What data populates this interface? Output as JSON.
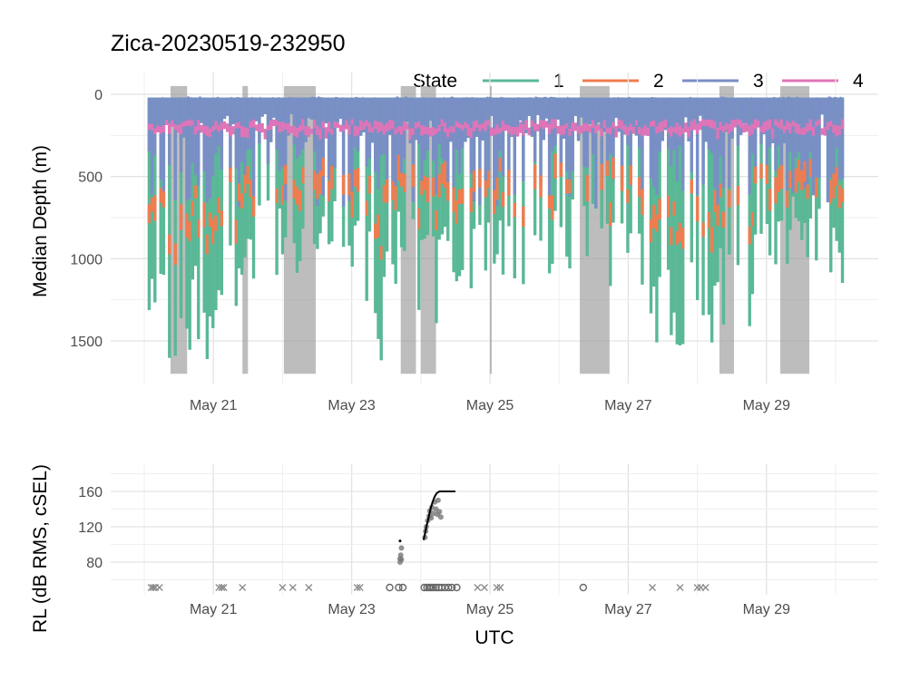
{
  "chart_data": [
    {
      "type": "line",
      "title": "Zica-20230519-232950",
      "xlabel": "",
      "ylabel": "Median Depth (m)",
      "x_tick_labels": [
        "May 21",
        "May 23",
        "May 25",
        "May 27",
        "May 29"
      ],
      "y_tick_labels": [
        "0",
        "500",
        "1000",
        "1500"
      ],
      "y_ticks": [
        0,
        500,
        1000,
        1500
      ],
      "y_reversed": true,
      "ylim": [
        1700,
        -60
      ],
      "xlim_days": [
        19.7,
        30.3
      ],
      "grid": true,
      "legend": {
        "title": "State",
        "position": "top",
        "entries": [
          {
            "label": "1",
            "color": "#5ab896"
          },
          {
            "label": "2",
            "color": "#f07c4f"
          },
          {
            "label": "3",
            "color": "#7a8ec6"
          },
          {
            "label": "4",
            "color": "#e074b8"
          }
        ]
      },
      "shaded_periods_days": [
        [
          20.38,
          20.62
        ],
        [
          21.42,
          21.5
        ],
        [
          22.02,
          22.48
        ],
        [
          23.71,
          23.93
        ],
        [
          24.0,
          24.22
        ],
        [
          25.0,
          25.02
        ],
        [
          26.3,
          26.73
        ],
        [
          28.32,
          28.53
        ],
        [
          29.2,
          29.62
        ]
      ],
      "dives": {
        "start_day": 20.05,
        "end_day": 30.12,
        "count": 240,
        "max_depth_profile_days": [
          20.05,
          20.4,
          20.8,
          21.2,
          21.6,
          22.0,
          22.4,
          22.9,
          23.4,
          23.7,
          24.0,
          24.2,
          24.5,
          25.0,
          25.5,
          26.0,
          26.5,
          27.0,
          27.4,
          27.8,
          28.2,
          28.6,
          29.0,
          29.4,
          29.8,
          30.12
        ],
        "max_depth_profile_m": [
          1540,
          1560,
          1620,
          1330,
          1050,
          1080,
          1050,
          940,
          1600,
          1100,
          1300,
          1450,
          1100,
          1180,
          1300,
          1100,
          1000,
          1260,
          1560,
          1520,
          1500,
          1560,
          1300,
          900,
          1050,
          1100
        ]
      }
    },
    {
      "type": "scatter",
      "xlabel": "UTC",
      "ylabel": "RL (dB RMS, cSEL)",
      "x_tick_labels": [
        "May 21",
        "May 23",
        "May 25",
        "May 27",
        "May 29"
      ],
      "y_tick_labels": [
        "80",
        "120",
        "160"
      ],
      "y_ticks": [
        80,
        120,
        160
      ],
      "ylim": [
        55,
        185
      ],
      "grid": true,
      "baseline_level": 52,
      "x_markers_days": [
        20.1,
        20.13,
        20.16,
        20.22,
        21.08,
        21.12,
        21.15,
        21.42,
        22.0,
        22.15,
        22.38,
        23.08,
        23.12,
        24.82,
        24.92,
        25.1,
        25.15,
        27.35,
        27.75,
        28.0,
        28.05,
        28.12
      ],
      "o_markers_days": [
        23.55,
        23.68,
        23.74,
        24.05,
        24.09,
        24.12,
        24.15,
        24.18,
        24.22,
        24.26,
        24.3,
        24.35,
        24.4,
        24.45,
        24.52,
        26.35
      ],
      "scatter_points": [
        {
          "day": 23.7,
          "rl": 80
        },
        {
          "day": 23.7,
          "rl": 84
        },
        {
          "day": 23.71,
          "rl": 88
        },
        {
          "day": 23.72,
          "rl": 96
        },
        {
          "day": 23.72,
          "rl": 83
        },
        {
          "day": 24.06,
          "rl": 108
        },
        {
          "day": 24.07,
          "rl": 115
        },
        {
          "day": 24.08,
          "rl": 120
        },
        {
          "day": 24.1,
          "rl": 127
        },
        {
          "day": 24.12,
          "rl": 132
        },
        {
          "day": 24.13,
          "rl": 138
        },
        {
          "day": 24.15,
          "rl": 130
        },
        {
          "day": 24.16,
          "rl": 142
        },
        {
          "day": 24.18,
          "rl": 135
        },
        {
          "day": 24.2,
          "rl": 148
        },
        {
          "day": 24.22,
          "rl": 140
        },
        {
          "day": 24.24,
          "rl": 134
        },
        {
          "day": 24.25,
          "rl": 150
        },
        {
          "day": 24.27,
          "rl": 137
        },
        {
          "day": 24.29,
          "rl": 131
        }
      ],
      "cumulative_line": {
        "days": [
          24.04,
          24.06,
          24.08,
          24.1,
          24.12,
          24.14,
          24.17,
          24.2,
          24.23,
          24.27,
          24.35,
          24.45,
          24.5
        ],
        "rl": [
          105,
          112,
          120,
          126,
          133,
          140,
          148,
          154,
          158,
          160,
          160,
          160,
          160
        ]
      },
      "cumulative_point": {
        "day": 23.7,
        "rl": 104
      }
    }
  ]
}
